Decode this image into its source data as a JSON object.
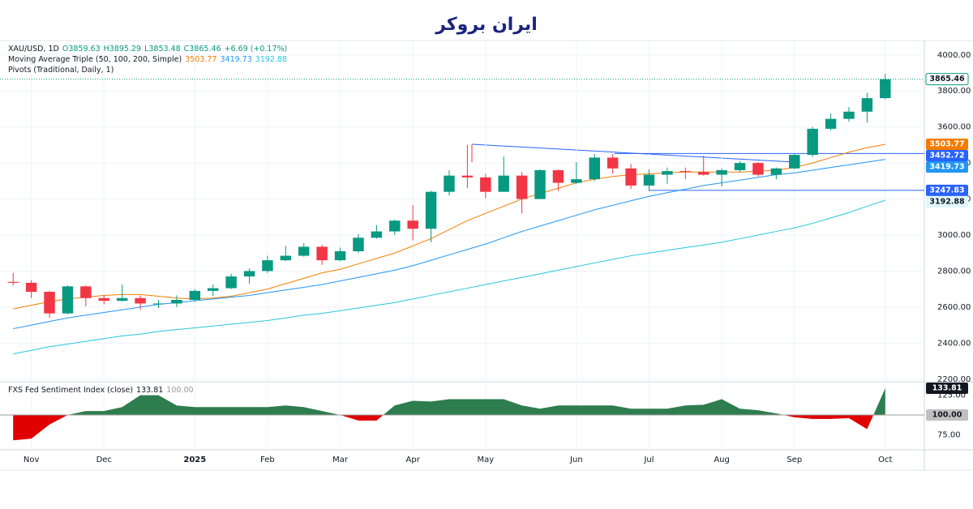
{
  "logo": "ایران بروکر",
  "chart_data": [
    {
      "type": "candlestick",
      "title": "XAU/USD, 1D",
      "ohlc_text": [
        "O3859.63",
        "H3895.29",
        "L3853.48",
        "C3865.46"
      ],
      "change": "+6.69 (+0.17%)",
      "indicator": "Moving Average Triple (50, 100, 200, Simple)",
      "pivots_title": "Pivots (Traditional, Daily, 1)",
      "categories": [
        null,
        "Nov",
        null,
        null,
        null,
        "Dec",
        null,
        null,
        null,
        null,
        "2025",
        null,
        null,
        null,
        "Feb",
        null,
        null,
        null,
        "Mar",
        null,
        null,
        null,
        "Apr",
        null,
        null,
        null,
        "May",
        null,
        null,
        null,
        null,
        "Jun",
        null,
        null,
        null,
        "Jul",
        null,
        null,
        null,
        "Aug",
        null,
        null,
        null,
        "Sep",
        null,
        null,
        null,
        null,
        "Oct"
      ],
      "open": [
        2740,
        2735,
        2685,
        2565,
        2715,
        2650,
        2635,
        2650,
        2620,
        2620,
        2640,
        2690,
        2705,
        2770,
        2800,
        2860,
        2885,
        2935,
        2860,
        2910,
        2985,
        3020,
        3080,
        3035,
        3240,
        3330,
        3320,
        3240,
        3330,
        3200,
        3360,
        3290,
        3310,
        3430,
        3370,
        3275,
        3335,
        3355,
        3350,
        3335,
        3360,
        3400,
        3335,
        3370,
        3445,
        3590,
        3645,
        3685,
        3760
      ],
      "high": [
        2790,
        2750,
        2690,
        2720,
        2720,
        2665,
        2725,
        2665,
        2640,
        2665,
        2700,
        2725,
        2785,
        2815,
        2885,
        2940,
        2955,
        2945,
        2930,
        3005,
        3055,
        3085,
        3165,
        3245,
        3360,
        3500,
        3340,
        3435,
        3350,
        3365,
        3365,
        3405,
        3450,
        3450,
        3395,
        3365,
        3375,
        3375,
        3440,
        3370,
        3410,
        3405,
        3375,
        3450,
        3600,
        3675,
        3710,
        3790,
        3895
      ],
      "low": [
        2720,
        2650,
        2540,
        2560,
        2605,
        2615,
        2630,
        2585,
        2595,
        2600,
        2630,
        2660,
        2700,
        2730,
        2790,
        2855,
        2880,
        2835,
        2855,
        2900,
        2980,
        3000,
        2970,
        2960,
        3220,
        3260,
        3205,
        3240,
        3120,
        3200,
        3245,
        3285,
        3300,
        3340,
        3255,
        3245,
        3285,
        3310,
        3330,
        3270,
        3350,
        3325,
        3310,
        3365,
        3435,
        3580,
        3630,
        3625,
        3755
      ],
      "close": [
        2735,
        2685,
        2565,
        2715,
        2650,
        2635,
        2650,
        2620,
        2620,
        2640,
        2690,
        2705,
        2770,
        2800,
        2860,
        2885,
        2935,
        2860,
        2910,
        2985,
        3020,
        3080,
        3035,
        3240,
        3330,
        3320,
        3240,
        3330,
        3200,
        3360,
        3290,
        3310,
        3430,
        3370,
        3275,
        3335,
        3355,
        3350,
        3335,
        3360,
        3400,
        3335,
        3370,
        3445,
        3590,
        3645,
        3685,
        3760,
        3865
      ],
      "up_color": "#089981",
      "down_color": "#f23645",
      "last_price": 3865.46,
      "series": [
        {
          "color": "#f57c00",
          "last": 3503.77,
          "values": [
            2590,
            2610,
            2630,
            2645,
            2655,
            2665,
            2670,
            2670,
            2660,
            2650,
            2645,
            2650,
            2660,
            2680,
            2700,
            2730,
            2760,
            2790,
            2810,
            2840,
            2870,
            2900,
            2940,
            2980,
            3030,
            3080,
            3120,
            3160,
            3200,
            3230,
            3260,
            3290,
            3310,
            3325,
            3335,
            3340,
            3345,
            3350,
            3350,
            3350,
            3350,
            3355,
            3360,
            3375,
            3400,
            3430,
            3460,
            3485,
            3504
          ]
        },
        {
          "color": "#2196f3",
          "last": 3419.73,
          "values": [
            2480,
            2500,
            2520,
            2540,
            2555,
            2570,
            2585,
            2600,
            2615,
            2625,
            2635,
            2645,
            2655,
            2665,
            2680,
            2695,
            2710,
            2725,
            2745,
            2765,
            2785,
            2805,
            2830,
            2860,
            2890,
            2920,
            2950,
            2985,
            3020,
            3050,
            3080,
            3110,
            3140,
            3165,
            3190,
            3215,
            3235,
            3255,
            3275,
            3290,
            3305,
            3320,
            3335,
            3345,
            3360,
            3375,
            3390,
            3405,
            3420
          ]
        },
        {
          "color": "#26c6da",
          "last": 3192.88,
          "values": [
            2340,
            2360,
            2380,
            2395,
            2410,
            2425,
            2440,
            2450,
            2465,
            2475,
            2485,
            2495,
            2505,
            2515,
            2525,
            2540,
            2555,
            2565,
            2580,
            2595,
            2610,
            2625,
            2645,
            2665,
            2685,
            2705,
            2725,
            2745,
            2765,
            2785,
            2805,
            2825,
            2845,
            2865,
            2885,
            2900,
            2915,
            2930,
            2945,
            2960,
            2980,
            3000,
            3020,
            3040,
            3065,
            3095,
            3125,
            3160,
            3193
          ]
        }
      ],
      "pivots": [
        3452.72,
        3247.83
      ],
      "pivot_color": "#2962ff",
      "ylim": [
        2190,
        4080
      ],
      "yticks": [
        {
          "value": 2200,
          "label": "2200.00"
        },
        {
          "value": 2400,
          "label": "2400.00"
        },
        {
          "value": 2600,
          "label": "2600.00"
        },
        {
          "value": 2800,
          "label": "2800.00"
        },
        {
          "value": 3000,
          "label": "3000.00"
        },
        {
          "value": 3200,
          "label": "3200.00"
        },
        {
          "value": 3400,
          "label": "3400.00"
        },
        {
          "value": 3600,
          "label": "3600.00"
        },
        {
          "value": 3800,
          "label": "3800.00"
        },
        {
          "value": 4000,
          "label": "4000.00"
        }
      ],
      "grid": true
    },
    {
      "type": "area",
      "title": "FXS Fed Sentiment Index (close)",
      "last": 133.81,
      "baseline": {
        "value": 100,
        "label": "100.00"
      },
      "values": [
        68,
        70,
        88,
        100,
        105,
        105,
        110,
        125,
        125,
        112,
        110,
        110,
        110,
        110,
        110,
        112,
        110,
        105,
        100,
        93,
        93,
        112,
        118,
        117,
        120,
        120,
        120,
        120,
        112,
        108,
        112,
        112,
        112,
        112,
        108,
        108,
        108,
        112,
        113,
        120,
        108,
        106,
        102,
        97,
        95,
        95,
        96,
        82,
        133.81
      ],
      "above_color": "#2e7d4f",
      "below_color": "#e00000",
      "ylim": [
        59,
        141
      ],
      "yticks": [
        {
          "value": 75,
          "label": "75.00"
        },
        {
          "value": 125,
          "label": "125.00"
        }
      ]
    }
  ]
}
